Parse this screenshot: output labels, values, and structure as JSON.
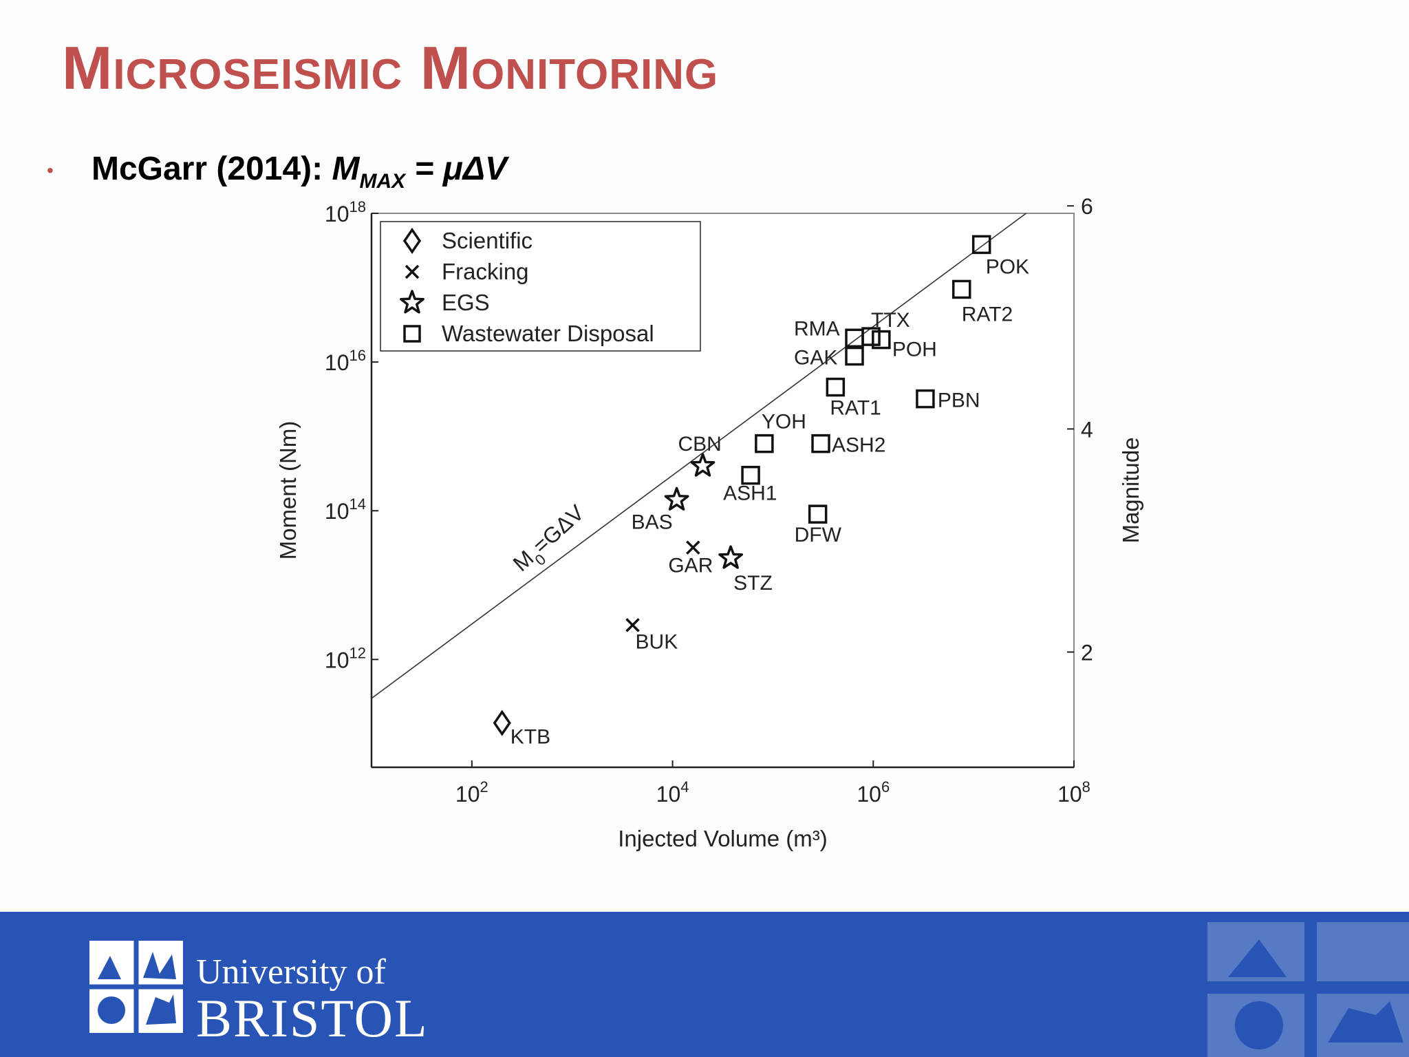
{
  "slide": {
    "title": "Microseismic Monitoring",
    "bullet_prefix": "McGarr (2014): ",
    "bullet_m": "M",
    "bullet_sub": "MAX",
    "bullet_rest": " = μΔV",
    "footer_line1": "University of",
    "footer_line2": "BRISTOL",
    "title_color": "#c0504d",
    "footer_color": "#2855b5"
  },
  "chart_data": {
    "type": "scatter",
    "xlabel": "Injected Volume (m³)",
    "ylabel": "Moment (Nm)",
    "y2label": "Magnitude",
    "x_scale": "log",
    "y_scale": "log",
    "xlim": [
      10,
      100000000
    ],
    "ylim": [
      1000000000000,
      1000000000000000000
    ],
    "y_min_exponent": 10.55,
    "x_ticks": [
      "10^2",
      "10^4",
      "10^6",
      "10^8"
    ],
    "y_ticks": [
      "10^12",
      "10^14",
      "10^16",
      "10^18"
    ],
    "y2_ticks": [
      "2",
      "4",
      "6"
    ],
    "line": {
      "label": "M0=GΔV",
      "label_main": "M",
      "label_sub": "0",
      "label_rest": "=GΔV"
    },
    "legend": {
      "placement": "top-left",
      "entries": [
        {
          "label": "Scientific",
          "marker": "diamond"
        },
        {
          "label": "Fracking",
          "marker": "x"
        },
        {
          "label": "EGS",
          "marker": "star"
        },
        {
          "label": "Wastewater Disposal",
          "marker": "square"
        }
      ]
    },
    "points": [
      {
        "name": "KTB",
        "category": "Scientific",
        "x": 200,
        "y": 140000000000.0
      },
      {
        "name": "BUK",
        "category": "Fracking",
        "x": 4000,
        "y": 2900000000000.0
      },
      {
        "name": "GAR",
        "category": "Fracking",
        "x": 16000,
        "y": 32000000000000.0
      },
      {
        "name": "CBN",
        "category": "EGS",
        "x": 20000,
        "y": 400000000000000.0
      },
      {
        "name": "BAS",
        "category": "EGS",
        "x": 11000,
        "y": 140000000000000.0
      },
      {
        "name": "STZ",
        "category": "EGS",
        "x": 38000,
        "y": 23000000000000.0
      },
      {
        "name": "YOH",
        "category": "Wastewater Disposal",
        "x": 82000,
        "y": 800000000000000.0
      },
      {
        "name": "ASH1",
        "category": "Wastewater Disposal",
        "x": 60000,
        "y": 300000000000000.0
      },
      {
        "name": "ASH2",
        "category": "Wastewater Disposal",
        "x": 300000,
        "y": 800000000000000.0
      },
      {
        "name": "DFW",
        "category": "Wastewater Disposal",
        "x": 280000,
        "y": 90000000000000.0
      },
      {
        "name": "RAT1",
        "category": "Wastewater Disposal",
        "x": 420000,
        "y": 4600000000000000.0
      },
      {
        "name": "GAK",
        "category": "Wastewater Disposal",
        "x": 650000,
        "y": 1.2e+16
      },
      {
        "name": "RMA",
        "category": "Wastewater Disposal",
        "x": 650000,
        "y": 2.1e+16
      },
      {
        "name": "TTX",
        "category": "Wastewater Disposal",
        "x": 950000,
        "y": 2.2e+16
      },
      {
        "name": "POH",
        "category": "Wastewater Disposal",
        "x": 1200000,
        "y": 2e+16
      },
      {
        "name": "PBN",
        "category": "Wastewater Disposal",
        "x": 3300000,
        "y": 3200000000000000.0
      },
      {
        "name": "RAT2",
        "category": "Wastewater Disposal",
        "x": 7600000,
        "y": 9.5e+16
      },
      {
        "name": "POK",
        "category": "Wastewater Disposal",
        "x": 12000000,
        "y": 3.8e+17
      }
    ]
  }
}
